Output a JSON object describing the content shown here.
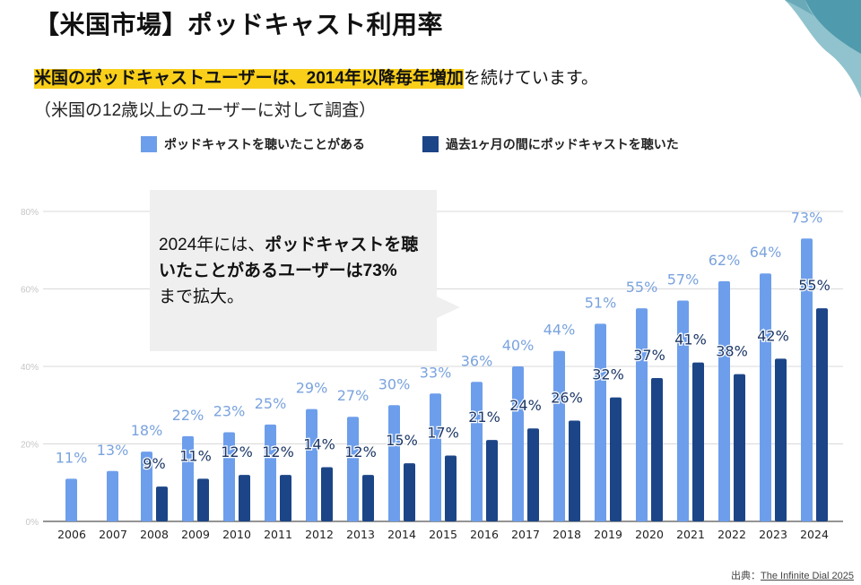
{
  "title": "【米国市場】ポッドキャスト利用率",
  "subtitle": {
    "highlight": "米国のポッドキャストユーザーは、2014年以降毎年増加",
    "rest": "を続けています。",
    "note": "（米国の12歳以上のユーザーに対して調査）"
  },
  "callout": {
    "part1": "2024年には、",
    "part2_bold": "ポッドキャストを聴いたことがあるユーザーは73%",
    "part3": "まで拡大。"
  },
  "source": {
    "label": "出典：",
    "link_text": "The Infinite Dial 2025"
  },
  "colors": {
    "ever_listened": "#6d9eeb",
    "monthly": "#1c4587",
    "label_light": "#7aa3de",
    "label_dark": "#1c3766",
    "highlight": "#f9cf1a",
    "decor_dark": "#4e9aab",
    "decor_light": "#7fb8c4"
  },
  "chart_data": {
    "type": "bar",
    "title": "",
    "xlabel": "",
    "ylabel": "",
    "ylim": [
      0,
      80
    ],
    "yticks": [
      "0%",
      "20%",
      "40%",
      "60%",
      "80%"
    ],
    "ytick_values": [
      0,
      20,
      40,
      60,
      80
    ],
    "grid": true,
    "legend_position": "top",
    "categories": [
      "2006",
      "2007",
      "2008",
      "2009",
      "2010",
      "2011",
      "2012",
      "2013",
      "2014",
      "2015",
      "2016",
      "2017",
      "2018",
      "2019",
      "2020",
      "2021",
      "2022",
      "2023",
      "2024"
    ],
    "series": [
      {
        "name": "ポッドキャストを聴いたことがある",
        "values": [
          11,
          13,
          18,
          22,
          23,
          25,
          29,
          27,
          30,
          33,
          36,
          40,
          44,
          51,
          55,
          57,
          62,
          64,
          73
        ],
        "labels": [
          "11%",
          "13%",
          "18%",
          "22%",
          "23%",
          "25%",
          "29%",
          "27%",
          "30%",
          "33%",
          "36%",
          "40%",
          "44%",
          "51%",
          "55%",
          "57%",
          "62%",
          "64%",
          "73%"
        ]
      },
      {
        "name": "過去1ヶ月の間にポッドキャストを聴いた",
        "values": [
          null,
          null,
          9,
          11,
          12,
          12,
          14,
          12,
          15,
          17,
          21,
          24,
          26,
          32,
          37,
          41,
          38,
          42,
          55
        ],
        "labels": [
          null,
          null,
          "9%",
          "11%",
          "12%",
          "12%",
          "14%",
          "12%",
          "15%",
          "17%",
          "21%",
          "24%",
          "26%",
          "32%",
          "37%",
          "41%",
          "38%",
          "42%",
          "55%"
        ]
      }
    ]
  }
}
